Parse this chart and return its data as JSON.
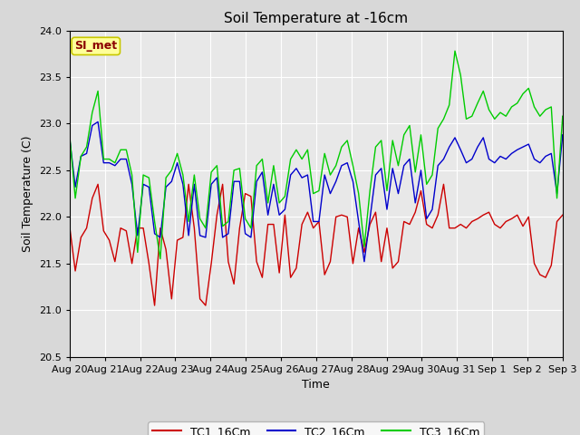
{
  "title": "Soil Temperature at -16cm",
  "xlabel": "Time",
  "ylabel": "Soil Temperature (C)",
  "ylim": [
    20.5,
    24.0
  ],
  "figwidth": 6.4,
  "figheight": 4.8,
  "dpi": 100,
  "bg_color": "#d8d8d8",
  "plot_bg_color": "#e8e8e8",
  "annotation_text": "SI_met",
  "annotation_color": "#8b0000",
  "annotation_bg": "#ffff99",
  "annotation_border": "#c8c800",
  "x_tick_labels": [
    "Aug 20",
    "Aug 21",
    "Aug 22",
    "Aug 23",
    "Aug 24",
    "Aug 25",
    "Aug 26",
    "Aug 27",
    "Aug 28",
    "Aug 29",
    "Aug 30",
    "Aug 31",
    "Sep 1",
    "Sep 2",
    "Sep 3"
  ],
  "TC1_color": "#cc0000",
  "TC2_color": "#0000cc",
  "TC3_color": "#00cc00",
  "TC1_label": "TC1_16Cm",
  "TC2_label": "TC2_16Cm",
  "TC3_label": "TC3_16Cm",
  "yticks": [
    20.5,
    21.0,
    21.5,
    22.0,
    22.5,
    23.0,
    23.5,
    24.0
  ],
  "num_days": 14,
  "TC1_16Cm": [
    21.9,
    21.42,
    21.78,
    21.88,
    22.2,
    22.35,
    21.85,
    21.75,
    21.52,
    21.88,
    21.85,
    21.5,
    21.88,
    21.88,
    21.5,
    21.05,
    21.88,
    21.65,
    21.12,
    21.75,
    21.78,
    22.35,
    21.88,
    21.12,
    21.05,
    21.5,
    22.02,
    22.35,
    21.52,
    21.28,
    21.88,
    22.25,
    22.22,
    21.52,
    21.35,
    21.92,
    21.92,
    21.4,
    22.02,
    21.35,
    21.45,
    21.92,
    22.05,
    21.88,
    21.95,
    21.38,
    21.52,
    22.0,
    22.02,
    22.0,
    21.5,
    21.88,
    21.62,
    21.92,
    22.05,
    21.52,
    21.88,
    21.45,
    21.52,
    21.95,
    21.92,
    22.05,
    22.28,
    21.92,
    21.88,
    22.02,
    22.35,
    21.88,
    21.88,
    21.92,
    21.88,
    21.95,
    21.98,
    22.02,
    22.05,
    21.92,
    21.88,
    21.95,
    21.98,
    22.02,
    21.9,
    22.0,
    21.5,
    21.38,
    21.35,
    21.48,
    21.95,
    22.02
  ],
  "TC2_16Cm": [
    22.85,
    22.32,
    22.65,
    22.68,
    22.98,
    23.02,
    22.58,
    22.58,
    22.55,
    22.62,
    22.62,
    22.35,
    21.8,
    22.35,
    22.32,
    21.82,
    21.78,
    22.32,
    22.38,
    22.58,
    22.35,
    21.8,
    22.35,
    21.8,
    21.78,
    22.35,
    22.42,
    21.78,
    21.82,
    22.38,
    22.38,
    21.82,
    21.78,
    22.38,
    22.48,
    22.02,
    22.35,
    22.02,
    22.08,
    22.45,
    22.52,
    22.42,
    22.45,
    21.95,
    21.95,
    22.45,
    22.25,
    22.38,
    22.55,
    22.58,
    22.38,
    21.95,
    21.52,
    21.98,
    22.45,
    22.52,
    22.08,
    22.52,
    22.25,
    22.55,
    22.62,
    22.15,
    22.5,
    21.98,
    22.08,
    22.55,
    22.62,
    22.75,
    22.85,
    22.72,
    22.58,
    22.62,
    22.75,
    22.85,
    22.62,
    22.58,
    22.65,
    22.62,
    22.68,
    22.72,
    22.75,
    22.78,
    22.62,
    22.58,
    22.65,
    22.68,
    22.25,
    22.88
  ],
  "TC3_16Cm": [
    22.88,
    22.2,
    22.65,
    22.75,
    23.12,
    23.35,
    22.62,
    22.62,
    22.58,
    22.72,
    22.72,
    22.45,
    21.62,
    22.45,
    22.42,
    21.95,
    21.55,
    22.42,
    22.5,
    22.68,
    22.45,
    21.95,
    22.45,
    21.98,
    21.88,
    22.48,
    22.55,
    21.9,
    21.95,
    22.5,
    22.52,
    21.98,
    21.88,
    22.55,
    22.62,
    22.15,
    22.55,
    22.15,
    22.22,
    22.62,
    22.72,
    22.62,
    22.72,
    22.25,
    22.28,
    22.68,
    22.45,
    22.55,
    22.75,
    22.82,
    22.55,
    22.25,
    21.68,
    22.28,
    22.75,
    22.82,
    22.28,
    22.82,
    22.55,
    22.88,
    22.98,
    22.48,
    22.88,
    22.35,
    22.45,
    22.95,
    23.05,
    23.2,
    23.78,
    23.52,
    23.05,
    23.08,
    23.22,
    23.35,
    23.15,
    23.05,
    23.12,
    23.08,
    23.18,
    23.22,
    23.32,
    23.38,
    23.18,
    23.08,
    23.15,
    23.18,
    22.2,
    23.08
  ]
}
